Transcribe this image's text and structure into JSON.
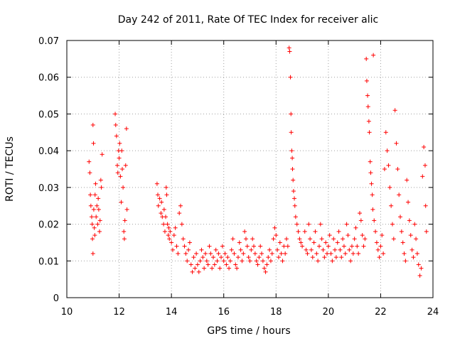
{
  "chart_data": {
    "type": "scatter",
    "title": "Day 242 of 2011, Rate Of TEC Index for receiver alic",
    "xlabel": "GPS time / hours",
    "ylabel": "ROTI / TECUs",
    "xlim": [
      10,
      24
    ],
    "ylim": [
      0,
      0.07
    ],
    "xticks": [
      10,
      12,
      14,
      16,
      18,
      20,
      22,
      24
    ],
    "yticks": [
      0,
      0.01,
      0.02,
      0.03,
      0.04,
      0.05,
      0.06,
      0.07
    ],
    "xtick_labels": [
      "10",
      "12",
      "14",
      "16",
      "18",
      "20",
      "22",
      "24"
    ],
    "ytick_labels": [
      "0",
      "0.01",
      "0.02",
      "0.03",
      "0.04",
      "0.05",
      "0.06",
      "0.07"
    ],
    "grid": true,
    "marker": "+",
    "color": "#ff0000",
    "series": [
      {
        "name": "ROTI",
        "points": [
          [
            10.85,
            0.037
          ],
          [
            10.88,
            0.034
          ],
          [
            10.9,
            0.028
          ],
          [
            10.92,
            0.025
          ],
          [
            10.95,
            0.022
          ],
          [
            10.97,
            0.02
          ],
          [
            10.98,
            0.016
          ],
          [
            11.0,
            0.012
          ],
          [
            11.0,
            0.047
          ],
          [
            11.02,
            0.042
          ],
          [
            11.03,
            0.024
          ],
          [
            11.05,
            0.019
          ],
          [
            11.07,
            0.017
          ],
          [
            11.08,
            0.028
          ],
          [
            11.1,
            0.031
          ],
          [
            11.12,
            0.022
          ],
          [
            11.15,
            0.025
          ],
          [
            11.18,
            0.02
          ],
          [
            11.2,
            0.027
          ],
          [
            11.22,
            0.024
          ],
          [
            11.25,
            0.018
          ],
          [
            11.27,
            0.021
          ],
          [
            11.3,
            0.032
          ],
          [
            11.32,
            0.03
          ],
          [
            11.35,
            0.039
          ],
          [
            11.85,
            0.05
          ],
          [
            11.87,
            0.047
          ],
          [
            11.9,
            0.044
          ],
          [
            11.93,
            0.036
          ],
          [
            11.95,
            0.034
          ],
          [
            11.98,
            0.04
          ],
          [
            12.0,
            0.038
          ],
          [
            12.02,
            0.042
          ],
          [
            12.05,
            0.033
          ],
          [
            12.08,
            0.026
          ],
          [
            12.1,
            0.04
          ],
          [
            12.12,
            0.035
          ],
          [
            12.15,
            0.03
          ],
          [
            12.18,
            0.018
          ],
          [
            12.2,
            0.016
          ],
          [
            12.22,
            0.021
          ],
          [
            12.25,
            0.036
          ],
          [
            12.28,
            0.046
          ],
          [
            12.3,
            0.024
          ],
          [
            13.45,
            0.031
          ],
          [
            13.48,
            0.028
          ],
          [
            13.5,
            0.025
          ],
          [
            13.55,
            0.027
          ],
          [
            13.6,
            0.023
          ],
          [
            13.62,
            0.026
          ],
          [
            13.65,
            0.022
          ],
          [
            13.7,
            0.02
          ],
          [
            13.72,
            0.024
          ],
          [
            13.75,
            0.018
          ],
          [
            13.78,
            0.022
          ],
          [
            13.8,
            0.03
          ],
          [
            13.82,
            0.028
          ],
          [
            13.85,
            0.02
          ],
          [
            13.88,
            0.017
          ],
          [
            13.9,
            0.019
          ],
          [
            13.92,
            0.016
          ],
          [
            13.95,
            0.018
          ],
          [
            14.0,
            0.015
          ],
          [
            14.05,
            0.013
          ],
          [
            14.1,
            0.017
          ],
          [
            14.15,
            0.019
          ],
          [
            14.2,
            0.014
          ],
          [
            14.25,
            0.012
          ],
          [
            14.3,
            0.023
          ],
          [
            14.35,
            0.025
          ],
          [
            14.4,
            0.02
          ],
          [
            14.45,
            0.016
          ],
          [
            14.5,
            0.014
          ],
          [
            14.55,
            0.012
          ],
          [
            14.6,
            0.01
          ],
          [
            14.65,
            0.013
          ],
          [
            14.7,
            0.015
          ],
          [
            14.75,
            0.009
          ],
          [
            14.8,
            0.007
          ],
          [
            14.85,
            0.011
          ],
          [
            14.9,
            0.008
          ],
          [
            14.95,
            0.012
          ],
          [
            15.0,
            0.009
          ],
          [
            15.05,
            0.007
          ],
          [
            15.1,
            0.01
          ],
          [
            15.15,
            0.013
          ],
          [
            15.2,
            0.011
          ],
          [
            15.25,
            0.008
          ],
          [
            15.3,
            0.012
          ],
          [
            15.35,
            0.01
          ],
          [
            15.4,
            0.009
          ],
          [
            15.45,
            0.014
          ],
          [
            15.5,
            0.012
          ],
          [
            15.55,
            0.008
          ],
          [
            15.6,
            0.011
          ],
          [
            15.65,
            0.009
          ],
          [
            15.7,
            0.013
          ],
          [
            15.75,
            0.01
          ],
          [
            15.8,
            0.012
          ],
          [
            15.85,
            0.008
          ],
          [
            15.9,
            0.011
          ],
          [
            15.95,
            0.014
          ],
          [
            16.0,
            0.01
          ],
          [
            16.05,
            0.012
          ],
          [
            16.1,
            0.009
          ],
          [
            16.15,
            0.011
          ],
          [
            16.2,
            0.008
          ],
          [
            16.25,
            0.01
          ],
          [
            16.3,
            0.013
          ],
          [
            16.35,
            0.016
          ],
          [
            16.4,
            0.012
          ],
          [
            16.45,
            0.009
          ],
          [
            16.5,
            0.008
          ],
          [
            16.55,
            0.011
          ],
          [
            16.6,
            0.015
          ],
          [
            16.65,
            0.013
          ],
          [
            16.7,
            0.01
          ],
          [
            16.75,
            0.012
          ],
          [
            16.8,
            0.018
          ],
          [
            16.85,
            0.016
          ],
          [
            16.9,
            0.014
          ],
          [
            16.95,
            0.011
          ],
          [
            17.0,
            0.01
          ],
          [
            17.05,
            0.013
          ],
          [
            17.1,
            0.016
          ],
          [
            17.15,
            0.014
          ],
          [
            17.2,
            0.012
          ],
          [
            17.25,
            0.01
          ],
          [
            17.3,
            0.009
          ],
          [
            17.35,
            0.011
          ],
          [
            17.4,
            0.014
          ],
          [
            17.45,
            0.012
          ],
          [
            17.5,
            0.01
          ],
          [
            17.55,
            0.008
          ],
          [
            17.6,
            0.007
          ],
          [
            17.65,
            0.009
          ],
          [
            17.7,
            0.011
          ],
          [
            17.75,
            0.013
          ],
          [
            17.8,
            0.01
          ],
          [
            17.85,
            0.012
          ],
          [
            17.9,
            0.016
          ],
          [
            17.95,
            0.019
          ],
          [
            18.0,
            0.017
          ],
          [
            18.05,
            0.013
          ],
          [
            18.1,
            0.011
          ],
          [
            18.15,
            0.015
          ],
          [
            18.2,
            0.012
          ],
          [
            18.25,
            0.01
          ],
          [
            18.3,
            0.014
          ],
          [
            18.35,
            0.012
          ],
          [
            18.4,
            0.016
          ],
          [
            18.45,
            0.014
          ],
          [
            18.5,
            0.068
          ],
          [
            18.52,
            0.067
          ],
          [
            18.55,
            0.06
          ],
          [
            18.57,
            0.05
          ],
          [
            18.58,
            0.045
          ],
          [
            18.6,
            0.04
          ],
          [
            18.62,
            0.038
          ],
          [
            18.63,
            0.035
          ],
          [
            18.65,
            0.032
          ],
          [
            18.67,
            0.029
          ],
          [
            18.7,
            0.027
          ],
          [
            18.72,
            0.025
          ],
          [
            18.75,
            0.022
          ],
          [
            18.8,
            0.02
          ],
          [
            18.85,
            0.018
          ],
          [
            18.9,
            0.016
          ],
          [
            18.95,
            0.015
          ],
          [
            19.0,
            0.014
          ],
          [
            19.1,
            0.018
          ],
          [
            19.15,
            0.013
          ],
          [
            19.2,
            0.012
          ],
          [
            19.25,
            0.02
          ],
          [
            19.3,
            0.016
          ],
          [
            19.35,
            0.013
          ],
          [
            19.4,
            0.011
          ],
          [
            19.45,
            0.015
          ],
          [
            19.5,
            0.018
          ],
          [
            19.55,
            0.012
          ],
          [
            19.6,
            0.01
          ],
          [
            19.65,
            0.014
          ],
          [
            19.7,
            0.02
          ],
          [
            19.75,
            0.016
          ],
          [
            19.8,
            0.013
          ],
          [
            19.85,
            0.011
          ],
          [
            19.9,
            0.015
          ],
          [
            19.95,
            0.012
          ],
          [
            20.0,
            0.014
          ],
          [
            20.05,
            0.017
          ],
          [
            20.1,
            0.012
          ],
          [
            20.15,
            0.01
          ],
          [
            20.2,
            0.016
          ],
          [
            20.25,
            0.013
          ],
          [
            20.3,
            0.011
          ],
          [
            20.35,
            0.015
          ],
          [
            20.4,
            0.018
          ],
          [
            20.45,
            0.013
          ],
          [
            20.5,
            0.011
          ],
          [
            20.55,
            0.016
          ],
          [
            20.6,
            0.014
          ],
          [
            20.65,
            0.012
          ],
          [
            20.7,
            0.02
          ],
          [
            20.75,
            0.017
          ],
          [
            20.8,
            0.013
          ],
          [
            20.85,
            0.01
          ],
          [
            20.9,
            0.014
          ],
          [
            20.95,
            0.012
          ],
          [
            21.0,
            0.016
          ],
          [
            21.05,
            0.019
          ],
          [
            21.1,
            0.014
          ],
          [
            21.15,
            0.012
          ],
          [
            21.2,
            0.023
          ],
          [
            21.25,
            0.021
          ],
          [
            21.3,
            0.017
          ],
          [
            21.35,
            0.014
          ],
          [
            21.4,
            0.016
          ],
          [
            21.45,
            0.065
          ],
          [
            21.47,
            0.059
          ],
          [
            21.5,
            0.055
          ],
          [
            21.52,
            0.052
          ],
          [
            21.55,
            0.048
          ],
          [
            21.57,
            0.045
          ],
          [
            21.6,
            0.037
          ],
          [
            21.62,
            0.034
          ],
          [
            21.65,
            0.031
          ],
          [
            21.68,
            0.028
          ],
          [
            21.7,
            0.024
          ],
          [
            21.72,
            0.066
          ],
          [
            21.75,
            0.021
          ],
          [
            21.8,
            0.018
          ],
          [
            21.85,
            0.015
          ],
          [
            21.9,
            0.013
          ],
          [
            21.95,
            0.011
          ],
          [
            22.0,
            0.014
          ],
          [
            22.05,
            0.017
          ],
          [
            22.1,
            0.012
          ],
          [
            22.15,
            0.035
          ],
          [
            22.2,
            0.045
          ],
          [
            22.25,
            0.04
          ],
          [
            22.3,
            0.036
          ],
          [
            22.35,
            0.03
          ],
          [
            22.4,
            0.025
          ],
          [
            22.45,
            0.02
          ],
          [
            22.5,
            0.016
          ],
          [
            22.55,
            0.051
          ],
          [
            22.6,
            0.042
          ],
          [
            22.65,
            0.035
          ],
          [
            22.7,
            0.028
          ],
          [
            22.75,
            0.022
          ],
          [
            22.8,
            0.018
          ],
          [
            22.85,
            0.015
          ],
          [
            22.9,
            0.012
          ],
          [
            22.95,
            0.01
          ],
          [
            23.0,
            0.032
          ],
          [
            23.05,
            0.026
          ],
          [
            23.1,
            0.021
          ],
          [
            23.15,
            0.017
          ],
          [
            23.2,
            0.013
          ],
          [
            23.25,
            0.011
          ],
          [
            23.3,
            0.02
          ],
          [
            23.35,
            0.016
          ],
          [
            23.4,
            0.012
          ],
          [
            23.45,
            0.009
          ],
          [
            23.5,
            0.006
          ],
          [
            23.55,
            0.008
          ],
          [
            23.6,
            0.033
          ],
          [
            23.65,
            0.041
          ],
          [
            23.7,
            0.036
          ],
          [
            23.72,
            0.025
          ],
          [
            23.75,
            0.018
          ]
        ]
      }
    ]
  }
}
